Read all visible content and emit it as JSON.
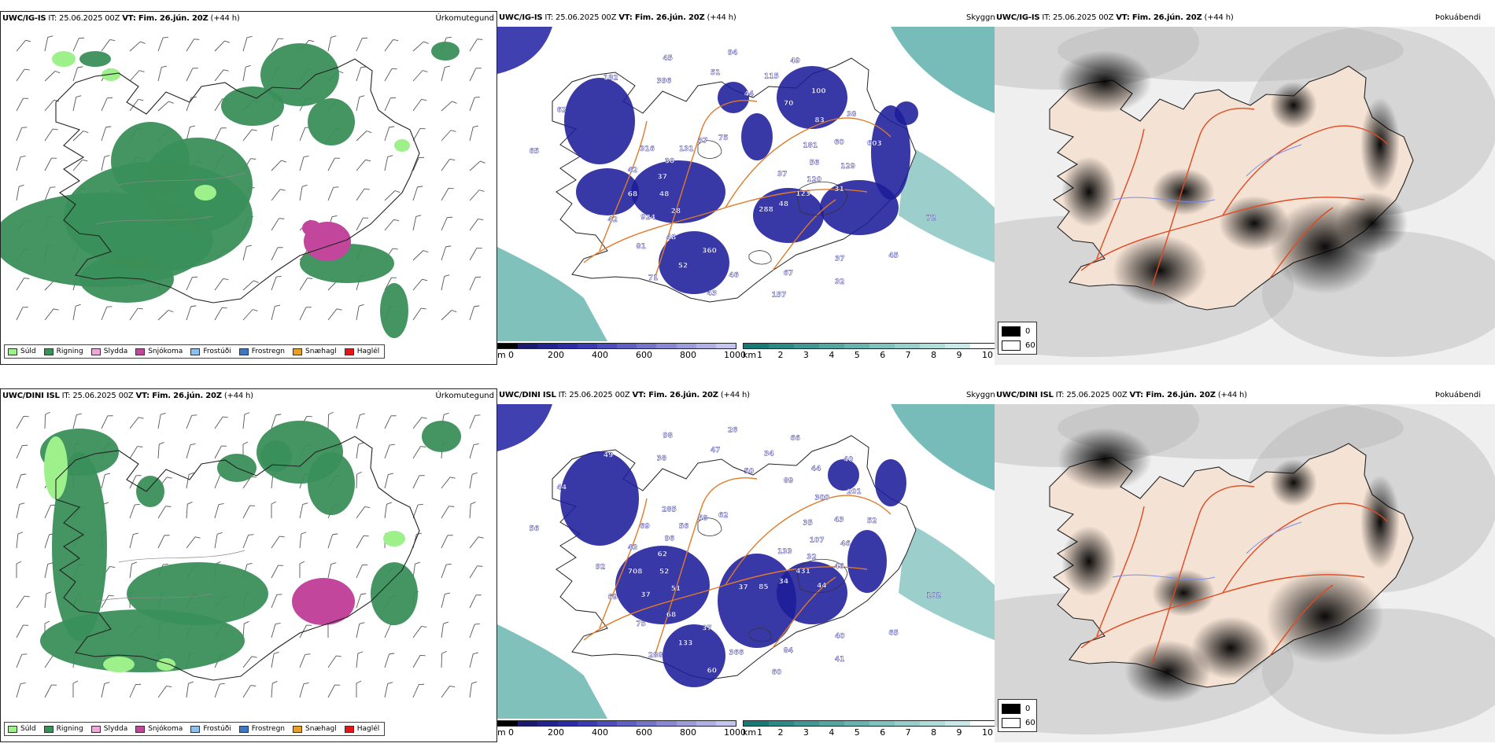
{
  "rows": [
    {
      "model": "UWC/IG-IS",
      "init": "IT: 25.06.2025 00Z",
      "valid": "VT: Fim. 26.jún. 20Z",
      "lead": "(+44 h)",
      "precip_title": "Úrkomutegund",
      "vis_title": "Skyggni",
      "cloud_title": "Þokuábendi",
      "labels": [
        "37",
        "28",
        "44",
        "37",
        "65",
        "181",
        "360",
        "396",
        "72",
        "48",
        "70",
        "67",
        "62",
        "56",
        "48",
        "51",
        "45",
        "37",
        "83",
        "46",
        "182",
        "120",
        "924",
        "115",
        "32",
        "30",
        "60",
        "52",
        "45",
        "123",
        "68",
        "100",
        "157",
        "131",
        "129",
        "81",
        "94",
        "48",
        "42",
        "38",
        "43",
        "37",
        "31",
        "42",
        "49",
        "288",
        "316",
        "603",
        "71",
        "75"
      ]
    },
    {
      "model": "UWC/DINI ISL",
      "init": "IT: 25.06.2025 00Z",
      "valid": "VT: Fim. 26.jún. 20Z",
      "lead": "(+44 h)",
      "precip_title": "Úrkomutegund",
      "vis_title": "Skyggni",
      "cloud_title": "Þokuábendi",
      "labels": [
        "133",
        "51",
        "50",
        "40",
        "56",
        "35",
        "37",
        "38",
        "102",
        "52",
        "89",
        "84",
        "44",
        "107",
        "68",
        "47",
        "65",
        "62",
        "300",
        "366",
        "49",
        "32",
        "37",
        "34",
        "41",
        "96",
        "43",
        "133",
        "98",
        "431",
        "708",
        "44",
        "60",
        "56",
        "46",
        "75",
        "26",
        "34",
        "43",
        "201",
        "60",
        "58",
        "46",
        "69",
        "66",
        "85",
        "69",
        "52",
        "288",
        "62",
        "44",
        "92",
        "40",
        "37",
        "285"
      ]
    }
  ],
  "precip_legend": [
    {
      "label": "Súld",
      "color": "#9ef08a"
    },
    {
      "label": "Rigning",
      "color": "#3a8f5a"
    },
    {
      "label": "Slydda",
      "color": "#f0a8d8"
    },
    {
      "label": "Snjókoma",
      "color": "#c2469c"
    },
    {
      "label": "Frostúði",
      "color": "#8cc0f0"
    },
    {
      "label": "Frostregn",
      "color": "#3a78c8"
    },
    {
      "label": "Snæhagl",
      "color": "#e8a020"
    },
    {
      "label": "Haglél",
      "color": "#e01818"
    }
  ],
  "height_bar": {
    "unit": "m",
    "ticks": [
      "0",
      "200",
      "400",
      "600",
      "800",
      "1000"
    ],
    "colors": [
      "#000000",
      "#1a1a70",
      "#23238f",
      "#2c2ca6",
      "#3a3ab4",
      "#4d4dbc",
      "#6060c4",
      "#7474cc",
      "#8888d4",
      "#9c9cdc",
      "#b0b0e4",
      "#c4c4ec"
    ]
  },
  "vis_bar": {
    "unit": "km",
    "ticks": [
      "1",
      "2",
      "3",
      "4",
      "5",
      "6",
      "7",
      "8",
      "9",
      "10"
    ],
    "colors": [
      "#157a76",
      "#2a8a86",
      "#3f9894",
      "#54a6a2",
      "#6ab4b0",
      "#80c2be",
      "#98cfcc",
      "#b0dcda",
      "#c8e9e7",
      "#ffffff"
    ]
  },
  "cloud_legend": {
    "min": "0",
    "max": "60",
    "min_color": "#000000",
    "max_color": "#ffffff"
  },
  "colors": {
    "rain": "#3a8f5a",
    "drizzle": "#9ef08a",
    "snow": "#c2469c",
    "vis_fog": "#4aa6a0",
    "low_cloud": "#1c1c9a",
    "road": "#e07a2a",
    "land_tan": "#f4e2d4",
    "coast": "#222222"
  }
}
